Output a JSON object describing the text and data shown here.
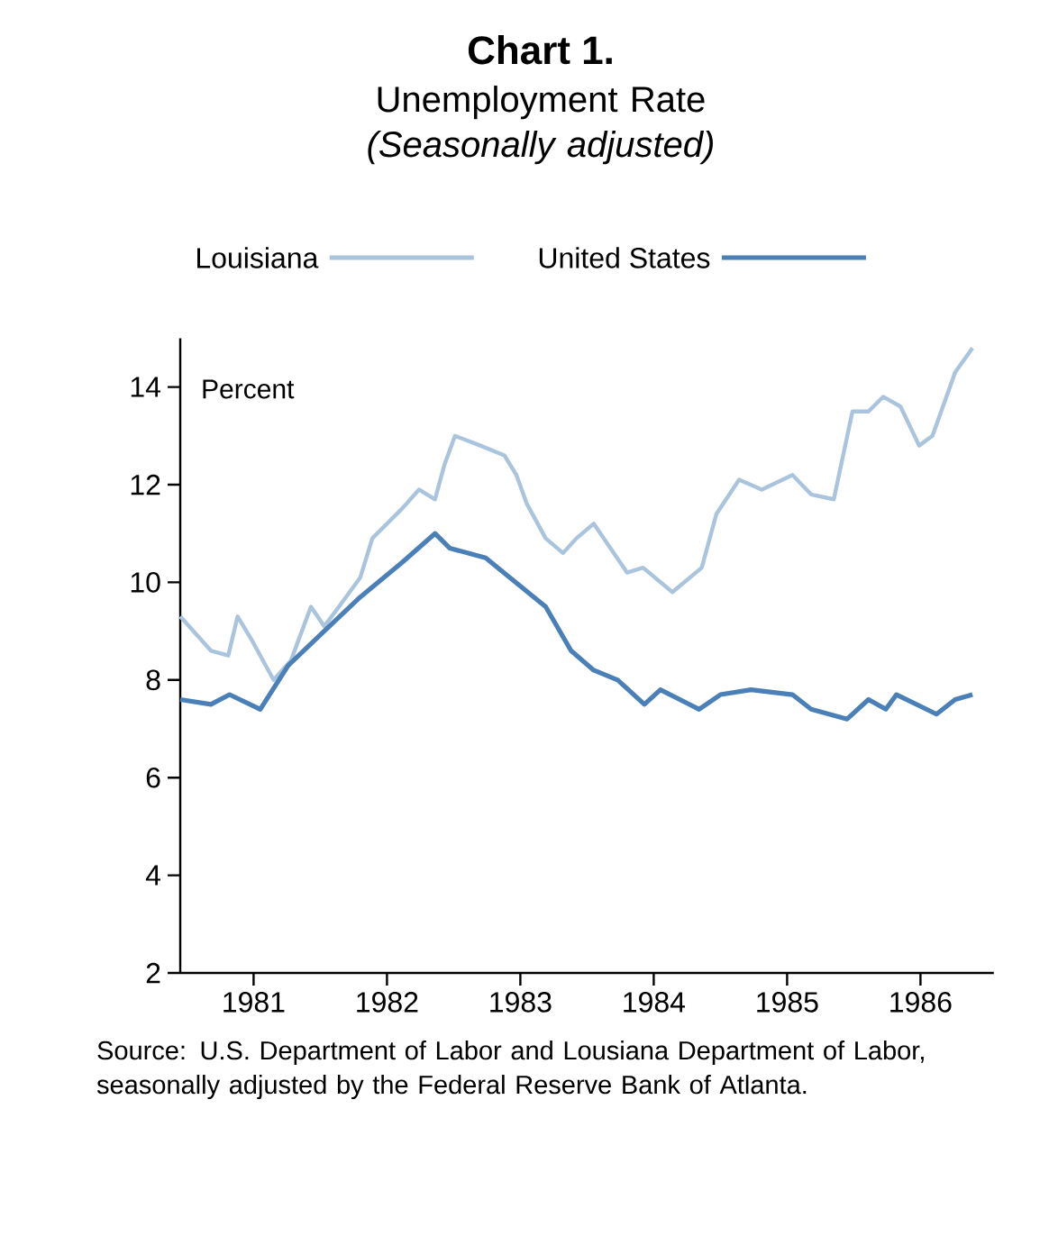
{
  "chart_data": {
    "type": "line",
    "title": "Chart 1.",
    "subtitle": "Unemployment Rate *(Seasonally adjusted)*",
    "ylabel": "Percent",
    "xlim": [
      1980.45,
      1986.55
    ],
    "xticks": [
      1981,
      1982,
      1983,
      1984,
      1985,
      1986
    ],
    "ylim": [
      2,
      15
    ],
    "yticks": [
      2,
      4,
      6,
      8,
      10,
      12,
      14
    ],
    "legend": "top",
    "grid": false,
    "series": [
      {
        "name": "Louisiana",
        "color": "#a9c4dc",
        "x": [
          1980.45,
          1980.68,
          1980.81,
          1980.88,
          1980.99,
          1981.15,
          1981.28,
          1981.43,
          1981.53,
          1981.64,
          1981.8,
          1981.89,
          1982.11,
          1982.24,
          1982.36,
          1982.43,
          1982.51,
          1982.7,
          1982.88,
          1982.97,
          1983.05,
          1983.19,
          1983.32,
          1983.42,
          1983.55,
          1983.8,
          1983.92,
          1984.14,
          1984.36,
          1984.47,
          1984.64,
          1984.81,
          1985.04,
          1985.18,
          1985.35,
          1985.49,
          1985.61,
          1985.72,
          1985.85,
          1985.99,
          1986.09,
          1986.26,
          1986.39
        ],
        "values": [
          9.3,
          8.6,
          8.5,
          9.3,
          8.8,
          8.0,
          8.4,
          9.5,
          9.1,
          9.5,
          10.1,
          10.9,
          11.5,
          11.9,
          11.7,
          12.4,
          13.0,
          12.8,
          12.6,
          12.2,
          11.6,
          10.9,
          10.6,
          10.9,
          11.2,
          10.2,
          10.3,
          9.8,
          10.3,
          11.4,
          12.1,
          11.9,
          12.2,
          11.8,
          11.7,
          13.5,
          13.5,
          13.8,
          13.6,
          12.8,
          13.0,
          14.3,
          14.8
        ]
      },
      {
        "name": "United States",
        "color": "#4a7fb8",
        "x": [
          1980.45,
          1980.68,
          1980.82,
          1981.05,
          1981.26,
          1981.49,
          1981.8,
          1982.11,
          1982.36,
          1982.47,
          1982.74,
          1982.92,
          1983.19,
          1983.38,
          1983.55,
          1983.73,
          1983.93,
          1984.05,
          1984.34,
          1984.5,
          1984.73,
          1985.04,
          1985.18,
          1985.45,
          1985.61,
          1985.74,
          1985.82,
          1986.12,
          1986.26,
          1986.39
        ],
        "values": [
          7.6,
          7.5,
          7.7,
          7.4,
          8.3,
          8.9,
          9.7,
          10.4,
          11.0,
          10.7,
          10.5,
          10.1,
          9.5,
          8.6,
          8.2,
          8.0,
          7.5,
          7.8,
          7.4,
          7.7,
          7.8,
          7.7,
          7.4,
          7.2,
          7.6,
          7.4,
          7.7,
          7.3,
          7.6,
          7.7
        ]
      }
    ],
    "annotations": [
      "Source: U.S. Department of Labor and Lousiana Department of Labor, seasonally adjusted by the Federal Reserve Bank of Atlanta."
    ]
  }
}
